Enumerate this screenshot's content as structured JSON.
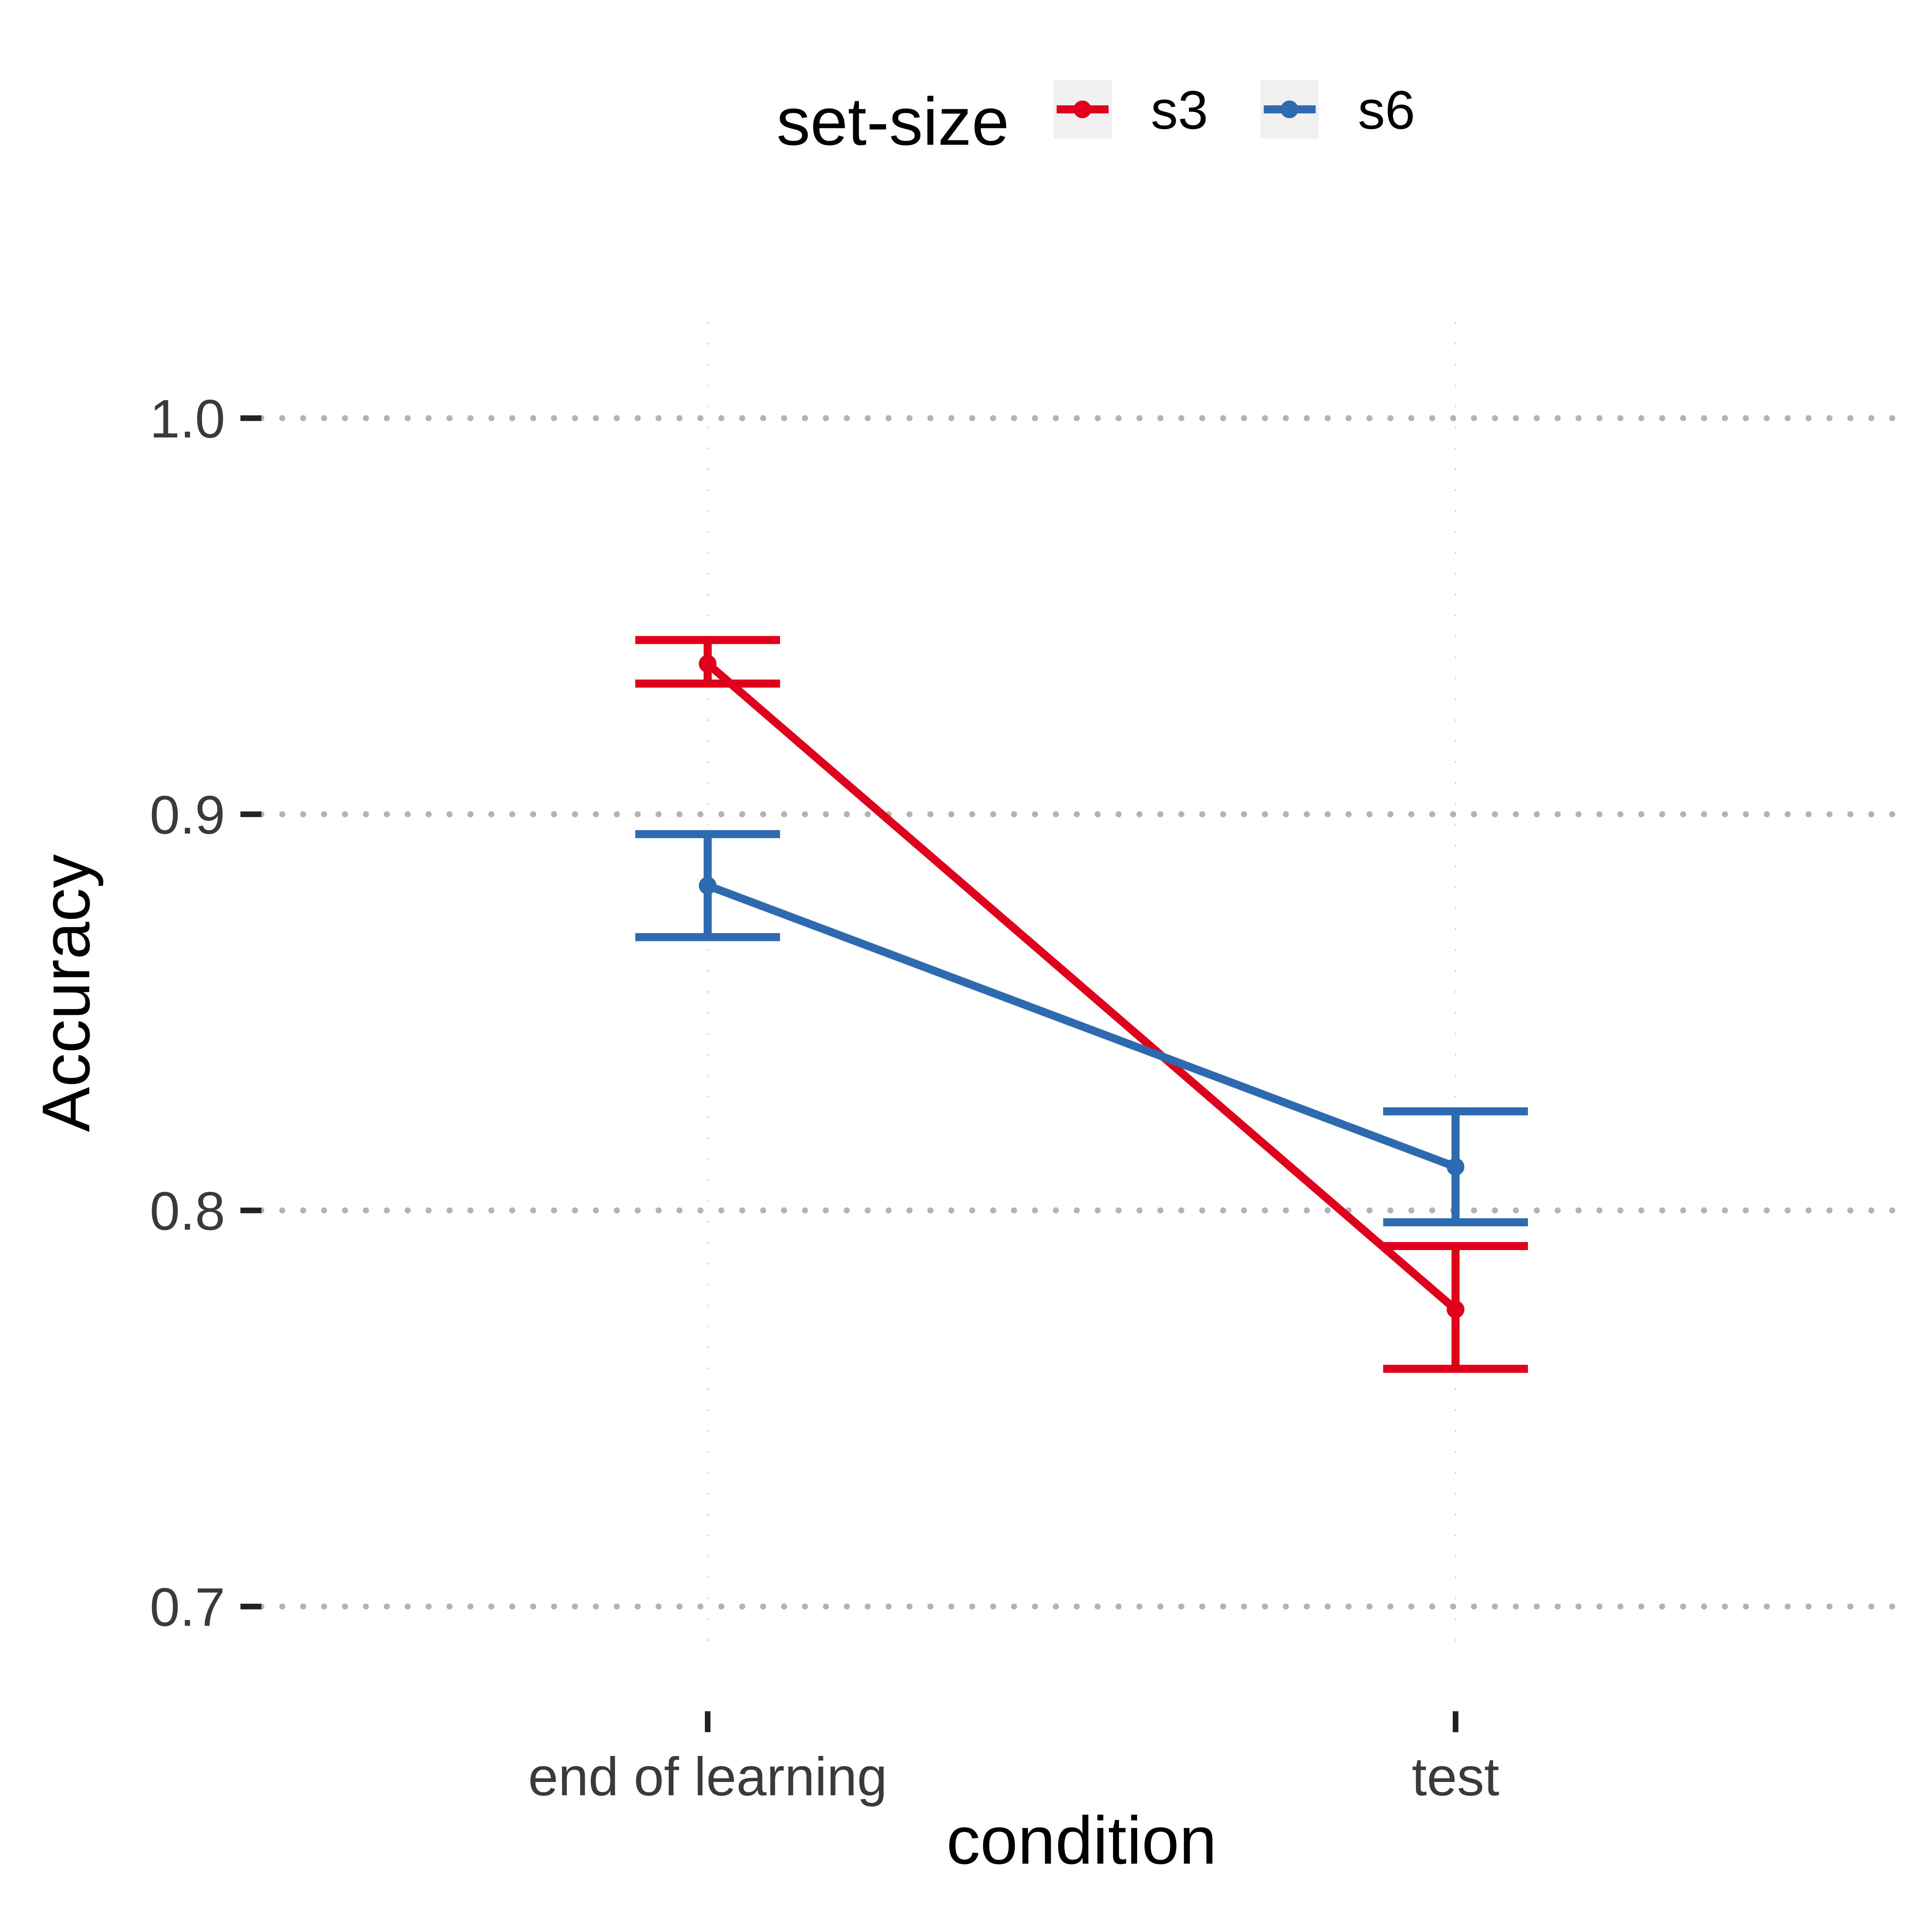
{
  "chart_data": {
    "type": "line",
    "xlabel": "condition",
    "ylabel": "Accuracy",
    "categories": [
      "end of learning",
      "test"
    ],
    "ylim": [
      0.69,
      1.02
    ],
    "yticks": [
      0.7,
      0.8,
      0.9,
      1.0
    ],
    "ytick_labels": [
      "0.7",
      "0.8",
      "0.9",
      "1.0"
    ],
    "grid": "horizontal dotted",
    "legend": {
      "title": "set-size",
      "position": "top"
    },
    "series": [
      {
        "name": "s3",
        "color": "#E0001B",
        "values": [
          0.938,
          0.775
        ],
        "error_low": [
          0.933,
          0.76
        ],
        "error_high": [
          0.944,
          0.791
        ]
      },
      {
        "name": "s6",
        "color": "#2E6AAF",
        "values": [
          0.882,
          0.811
        ],
        "error_low": [
          0.869,
          0.797
        ],
        "error_high": [
          0.895,
          0.825
        ]
      }
    ]
  }
}
